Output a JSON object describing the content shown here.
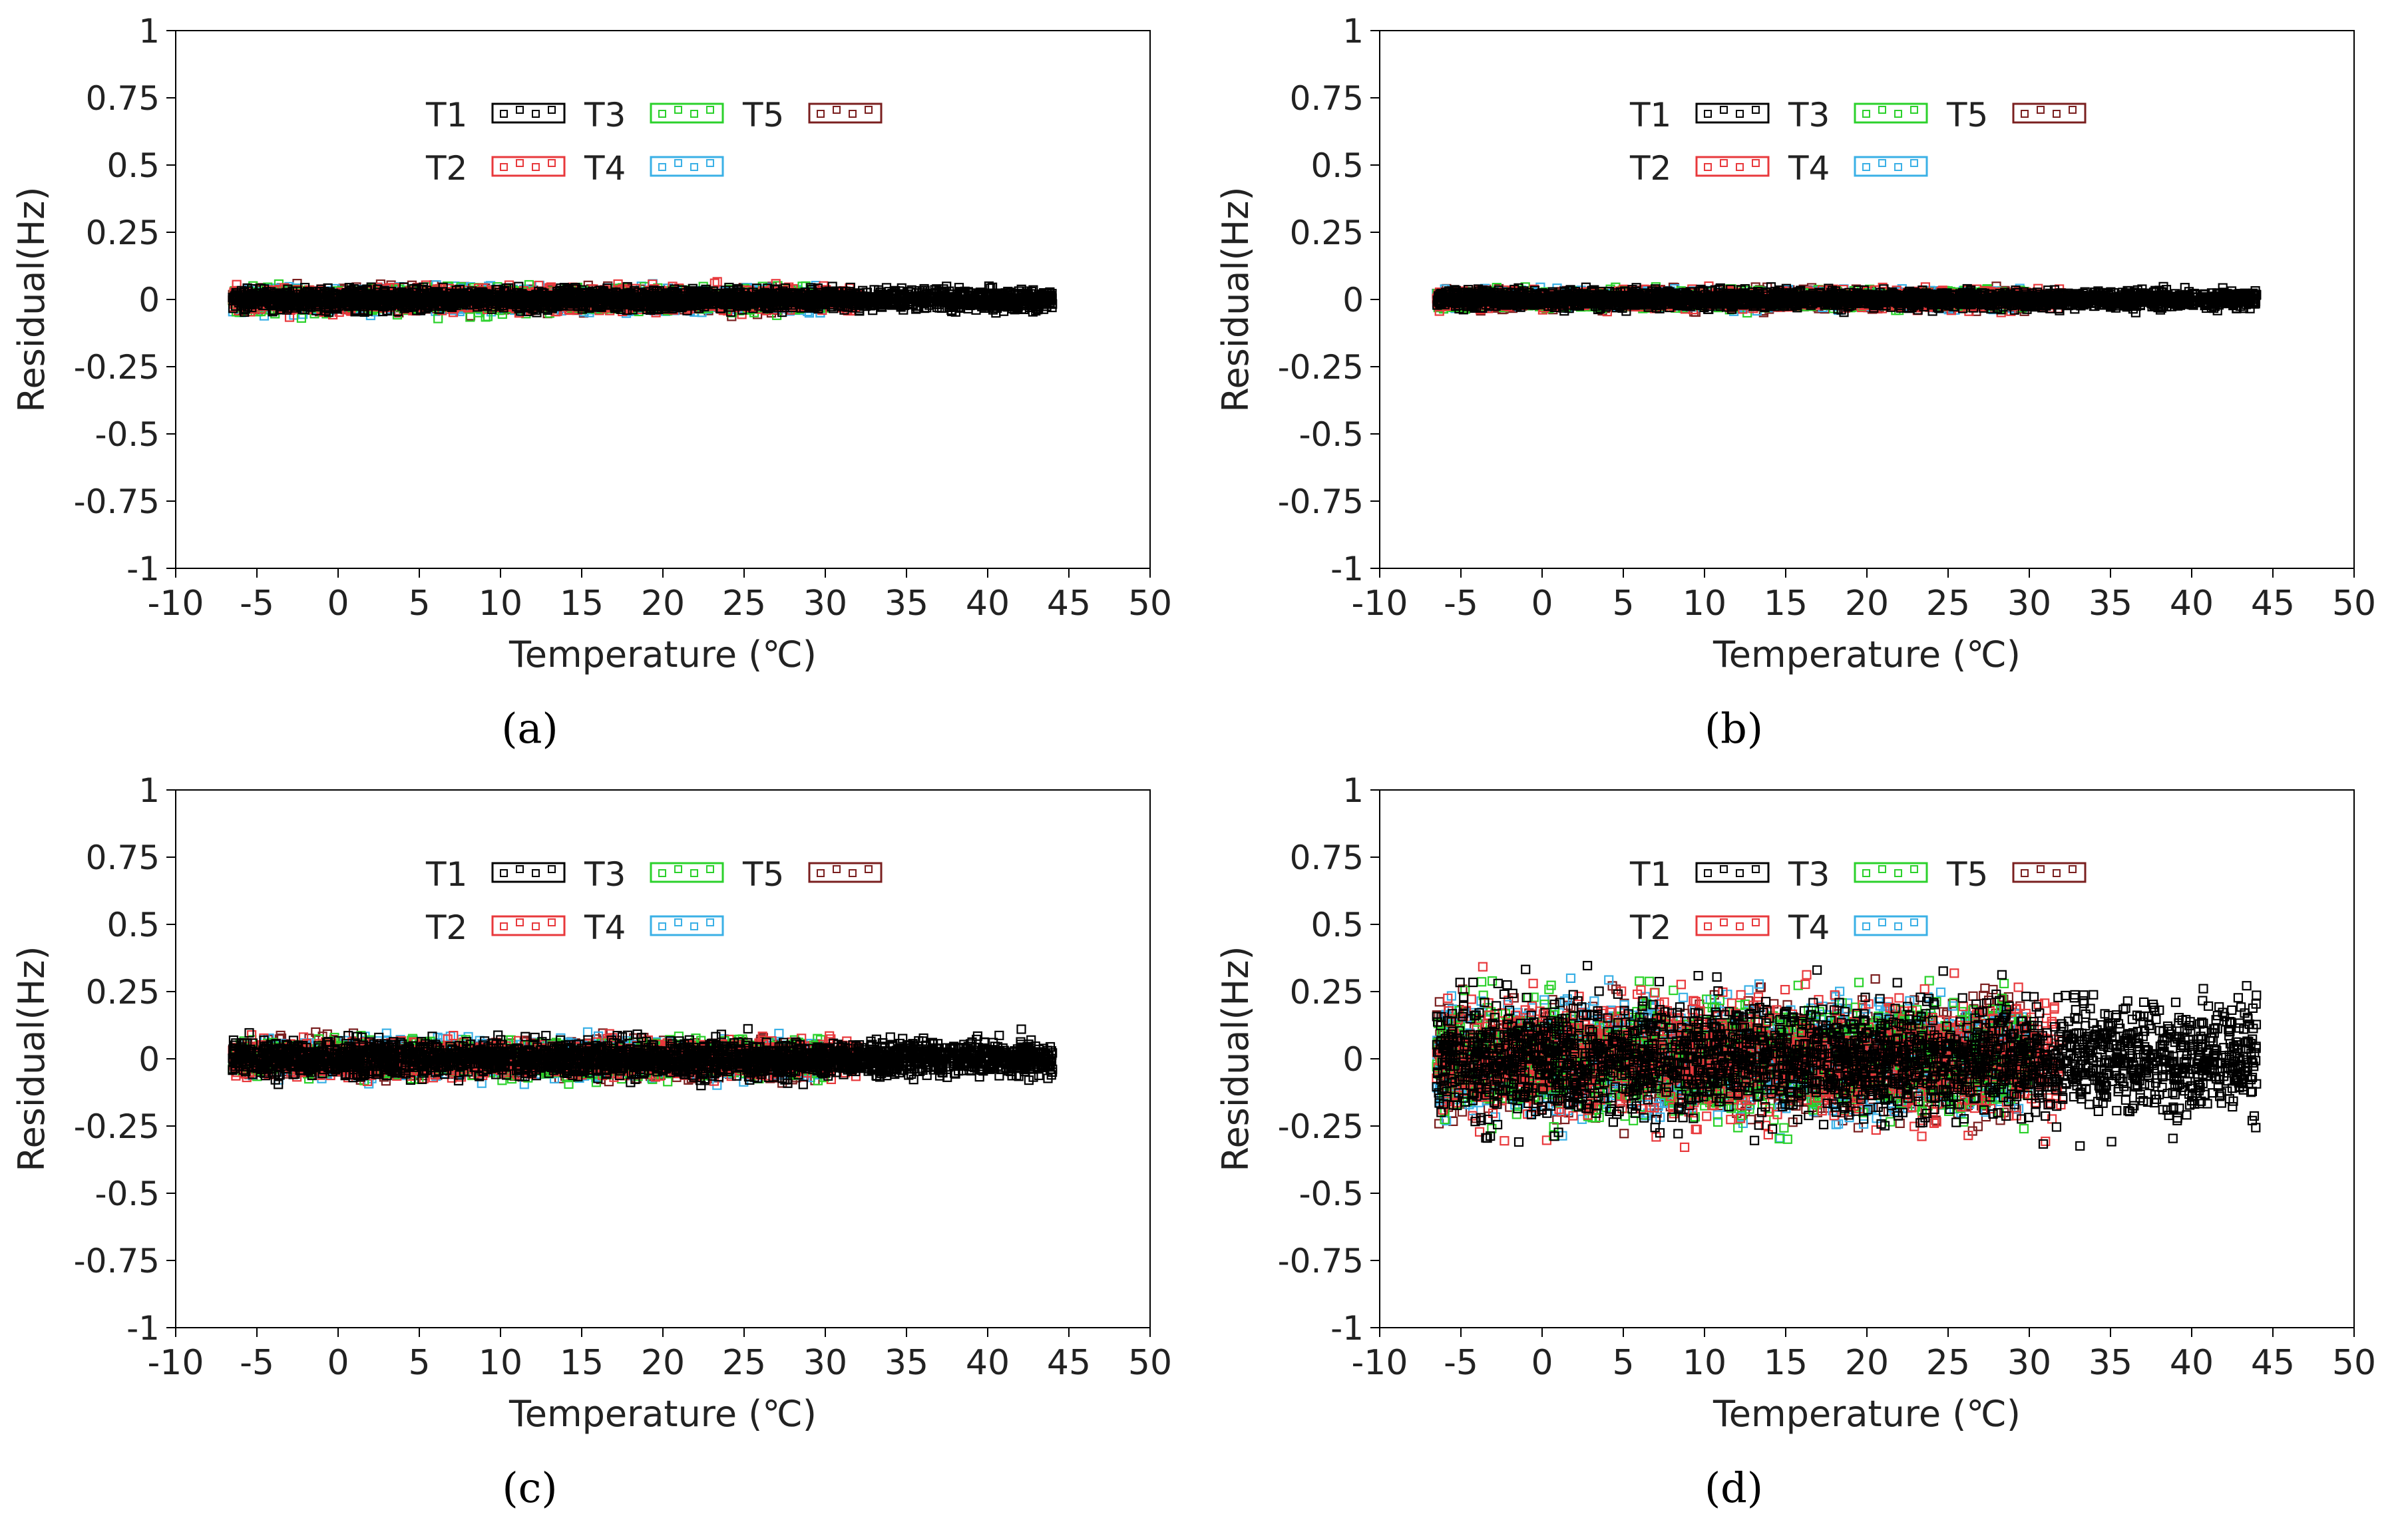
{
  "chart_data": [
    {
      "type": "scatter",
      "panel_label": "a",
      "caption": "(a)",
      "xlabel": "Temperature (℃)",
      "ylabel": "Residual(Hz)",
      "xlim": [
        -10,
        50
      ],
      "ylim": [
        -1,
        1
      ],
      "xticks": [
        -10,
        -5,
        0,
        5,
        10,
        15,
        20,
        25,
        30,
        35,
        40,
        45,
        50
      ],
      "xtick_labels": [
        "-10",
        "-5",
        "0",
        "5",
        "10",
        "15",
        "20",
        "25",
        "30",
        "35",
        "40",
        "45",
        "50"
      ],
      "yticks": [
        1,
        0.75,
        0.5,
        0.25,
        0,
        -0.25,
        -0.5,
        -0.75,
        -1
      ],
      "ytick_labels": [
        "1",
        "0.75",
        "0.5",
        "0.25",
        "0",
        "-0.25",
        "-0.5",
        "-0.75",
        "-1"
      ],
      "grid": false,
      "legend_position": "top-center",
      "series": [
        {
          "name": "T1",
          "color": "#000000",
          "x_range": [
            -6.5,
            44
          ],
          "spread": 0.018,
          "max_abs": 0.05
        },
        {
          "name": "T2",
          "color": "#e8393c",
          "x_range": [
            -6.5,
            32
          ],
          "spread": 0.02,
          "max_abs": 0.09
        },
        {
          "name": "T3",
          "color": "#2bd12b",
          "x_range": [
            -6.5,
            30
          ],
          "spread": 0.02,
          "max_abs": 0.1
        },
        {
          "name": "T4",
          "color": "#3ab0e6",
          "x_range": [
            -6.5,
            30
          ],
          "spread": 0.02,
          "max_abs": 0.1
        },
        {
          "name": "T5",
          "color": "#7a1f1f",
          "x_range": [
            -6.5,
            30
          ],
          "spread": 0.018,
          "max_abs": 0.07
        }
      ]
    },
    {
      "type": "scatter",
      "panel_label": "b",
      "caption": "(b)",
      "xlabel": "Temperature (℃)",
      "ylabel": "Residual(Hz)",
      "xlim": [
        -10,
        50
      ],
      "ylim": [
        -1,
        1
      ],
      "xticks": [
        -10,
        -5,
        0,
        5,
        10,
        15,
        20,
        25,
        30,
        35,
        40,
        45,
        50
      ],
      "xtick_labels": [
        "-10",
        "-5",
        "0",
        "5",
        "10",
        "15",
        "20",
        "25",
        "30",
        "35",
        "40",
        "45",
        "50"
      ],
      "yticks": [
        1,
        0.75,
        0.5,
        0.25,
        0,
        -0.25,
        -0.5,
        -0.75,
        -1
      ],
      "ytick_labels": [
        "1",
        "0.75",
        "0.5",
        "0.25",
        "0",
        "-0.25",
        "-0.5",
        "-0.75",
        "-1"
      ],
      "grid": false,
      "legend_position": "top-center",
      "series": [
        {
          "name": "T1",
          "color": "#000000",
          "x_range": [
            -6.5,
            44
          ],
          "spread": 0.015,
          "max_abs": 0.05
        },
        {
          "name": "T2",
          "color": "#e8393c",
          "x_range": [
            -6.5,
            32
          ],
          "spread": 0.015,
          "max_abs": 0.05
        },
        {
          "name": "T3",
          "color": "#2bd12b",
          "x_range": [
            -6.5,
            30
          ],
          "spread": 0.015,
          "max_abs": 0.05
        },
        {
          "name": "T4",
          "color": "#3ab0e6",
          "x_range": [
            -6.5,
            30
          ],
          "spread": 0.015,
          "max_abs": 0.05
        },
        {
          "name": "T5",
          "color": "#7a1f1f",
          "x_range": [
            -6.5,
            30
          ],
          "spread": 0.015,
          "max_abs": 0.05
        }
      ]
    },
    {
      "type": "scatter",
      "panel_label": "c",
      "caption": "(c)",
      "xlabel": "Temperature (℃)",
      "ylabel": "Residual(Hz)",
      "xlim": [
        -10,
        50
      ],
      "ylim": [
        -1,
        1
      ],
      "xticks": [
        -10,
        -5,
        0,
        5,
        10,
        15,
        20,
        25,
        30,
        35,
        40,
        45,
        50
      ],
      "xtick_labels": [
        "-10",
        "-5",
        "0",
        "5",
        "10",
        "15",
        "20",
        "25",
        "30",
        "35",
        "40",
        "45",
        "50"
      ],
      "yticks": [
        1,
        0.75,
        0.5,
        0.25,
        0,
        -0.25,
        -0.5,
        -0.75,
        -1
      ],
      "ytick_labels": [
        "1",
        "0.75",
        "0.5",
        "0.25",
        "0",
        "-0.25",
        "-0.5",
        "-0.75",
        "-1"
      ],
      "grid": false,
      "legend_position": "top-center",
      "series": [
        {
          "name": "T1",
          "color": "#000000",
          "x_range": [
            -6.5,
            44
          ],
          "spread": 0.03,
          "max_abs": 0.12
        },
        {
          "name": "T2",
          "color": "#e8393c",
          "x_range": [
            -6.5,
            32
          ],
          "spread": 0.03,
          "max_abs": 0.12
        },
        {
          "name": "T3",
          "color": "#2bd12b",
          "x_range": [
            -6.5,
            30
          ],
          "spread": 0.03,
          "max_abs": 0.12
        },
        {
          "name": "T4",
          "color": "#3ab0e6",
          "x_range": [
            -6.5,
            30
          ],
          "spread": 0.03,
          "max_abs": 0.1
        },
        {
          "name": "T5",
          "color": "#7a1f1f",
          "x_range": [
            -6.5,
            30
          ],
          "spread": 0.03,
          "max_abs": 0.1
        }
      ]
    },
    {
      "type": "scatter",
      "panel_label": "d",
      "caption": "(d)",
      "xlabel": "Temperature (℃)",
      "ylabel": "Residual(Hz)",
      "xlim": [
        -10,
        50
      ],
      "ylim": [
        -1,
        1
      ],
      "xticks": [
        -10,
        -5,
        0,
        5,
        10,
        15,
        20,
        25,
        30,
        35,
        40,
        45,
        50
      ],
      "xtick_labels": [
        "-10",
        "-5",
        "0",
        "5",
        "10",
        "15",
        "20",
        "25",
        "30",
        "35",
        "40",
        "45",
        "50"
      ],
      "yticks": [
        1,
        0.75,
        0.5,
        0.25,
        0,
        -0.25,
        -0.5,
        -0.75,
        -1
      ],
      "ytick_labels": [
        "1",
        "0.75",
        "0.5",
        "0.25",
        "0",
        "-0.25",
        "-0.5",
        "-0.75",
        "-1"
      ],
      "grid": false,
      "legend_position": "top-center",
      "series": [
        {
          "name": "T1",
          "color": "#000000",
          "x_range": [
            -6.5,
            44
          ],
          "spread": 0.1,
          "max_abs": 0.35
        },
        {
          "name": "T2",
          "color": "#e8393c",
          "x_range": [
            -6.5,
            32
          ],
          "spread": 0.1,
          "max_abs": 0.35
        },
        {
          "name": "T3",
          "color": "#2bd12b",
          "x_range": [
            -6.5,
            30
          ],
          "spread": 0.1,
          "max_abs": 0.3
        },
        {
          "name": "T4",
          "color": "#3ab0e6",
          "x_range": [
            -6.5,
            30
          ],
          "spread": 0.1,
          "max_abs": 0.3
        },
        {
          "name": "T5",
          "color": "#7a1f1f",
          "x_range": [
            -6.5,
            30
          ],
          "spread": 0.1,
          "max_abs": 0.3
        }
      ]
    }
  ]
}
